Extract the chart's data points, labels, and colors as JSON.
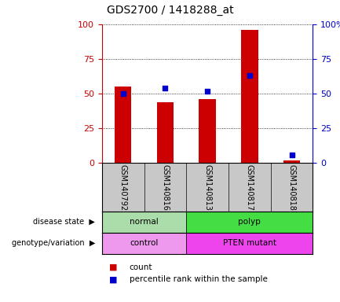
{
  "title": "GDS2700 / 1418288_at",
  "samples": [
    "GSM140792",
    "GSM140816",
    "GSM140813",
    "GSM140817",
    "GSM140818"
  ],
  "count_values": [
    55,
    44,
    46,
    96,
    2
  ],
  "percentile_values": [
    50,
    54,
    52,
    63,
    6
  ],
  "bar_color": "#cc0000",
  "percentile_color": "#0000cc",
  "ylim": [
    0,
    100
  ],
  "yticks": [
    0,
    25,
    50,
    75,
    100
  ],
  "disease_state": [
    {
      "label": "normal",
      "span": [
        0,
        2
      ],
      "color": "#aaddaa"
    },
    {
      "label": "polyp",
      "span": [
        2,
        5
      ],
      "color": "#44dd44"
    }
  ],
  "genotype": [
    {
      "label": "control",
      "span": [
        0,
        2
      ],
      "color": "#ee99ee"
    },
    {
      "label": "PTEN mutant",
      "span": [
        2,
        5
      ],
      "color": "#ee44ee"
    }
  ],
  "legend_count_label": "count",
  "legend_percentile_label": "percentile rank within the sample",
  "disease_state_label": "disease state",
  "genotype_label": "genotype/variation",
  "left_yaxis_color": "#cc0000",
  "right_yaxis_color": "#0000cc",
  "plot_bgcolor": "#ffffff",
  "xtick_bgcolor": "#c8c8c8",
  "bar_width": 0.4,
  "figsize": [
    4.33,
    3.84
  ],
  "dpi": 100
}
